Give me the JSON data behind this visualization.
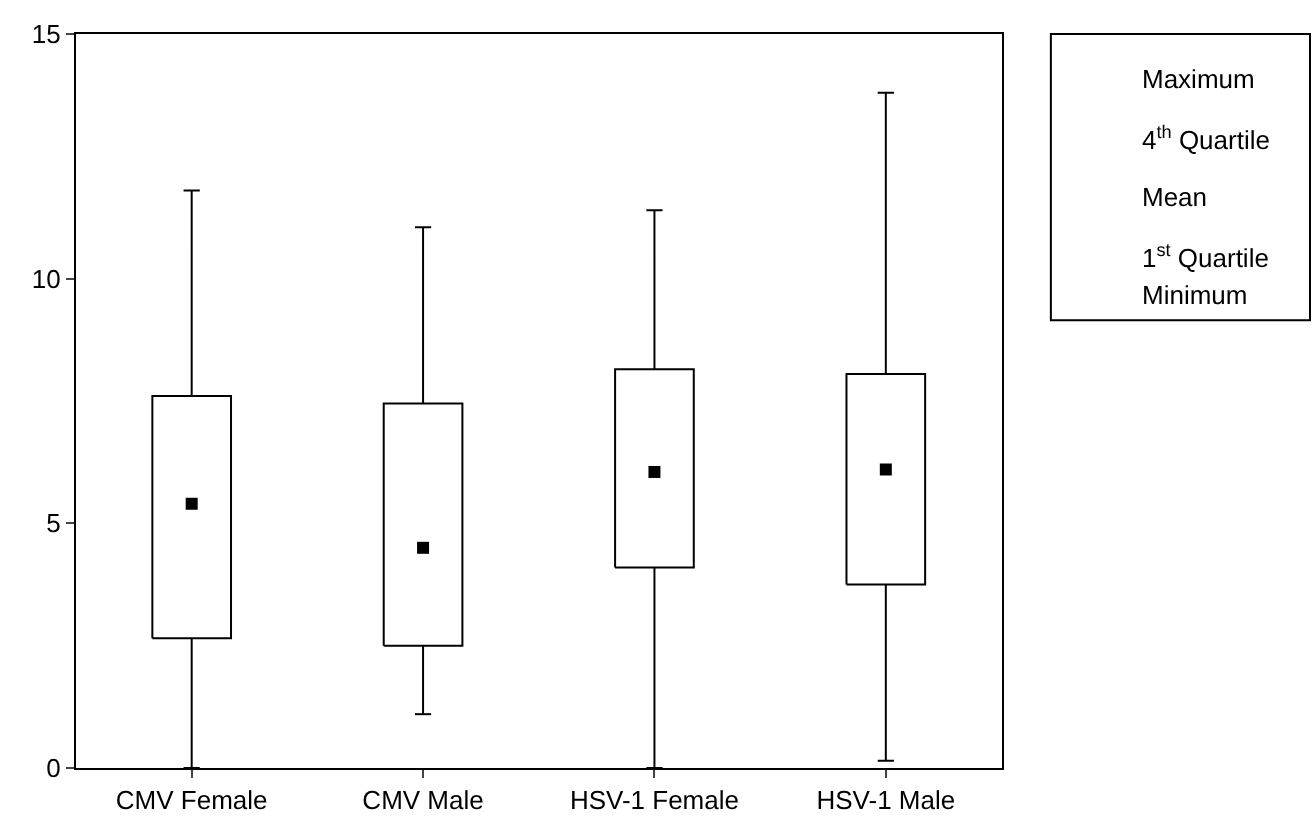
{
  "chart_data": {
    "type": "box",
    "categories": [
      "CMV Female",
      "CMV Male",
      "HSV-1 Female",
      "HSV-1 Male"
    ],
    "boxes": [
      {
        "low": 0,
        "q1": 2.65,
        "q3": 7.6,
        "high": 11.8,
        "mean": 5.4
      },
      {
        "low": 1.1,
        "q1": 2.5,
        "q3": 7.45,
        "high": 11.05,
        "mean": 4.5
      },
      {
        "low": 0,
        "q1": 4.1,
        "q3": 8.15,
        "high": 11.4,
        "mean": 6.05
      },
      {
        "low": 0.15,
        "q1": 3.75,
        "q3": 8.05,
        "high": 13.8,
        "mean": 6.1
      }
    ],
    "ylim": [
      0,
      15
    ],
    "yticks": [
      0,
      5,
      10,
      15
    ],
    "marker": "square",
    "annotations": [
      "Maximum",
      "4$^{th}$ Quartile",
      "Mean",
      "1$^{st}$ Quartile",
      "Minimum"
    ]
  }
}
